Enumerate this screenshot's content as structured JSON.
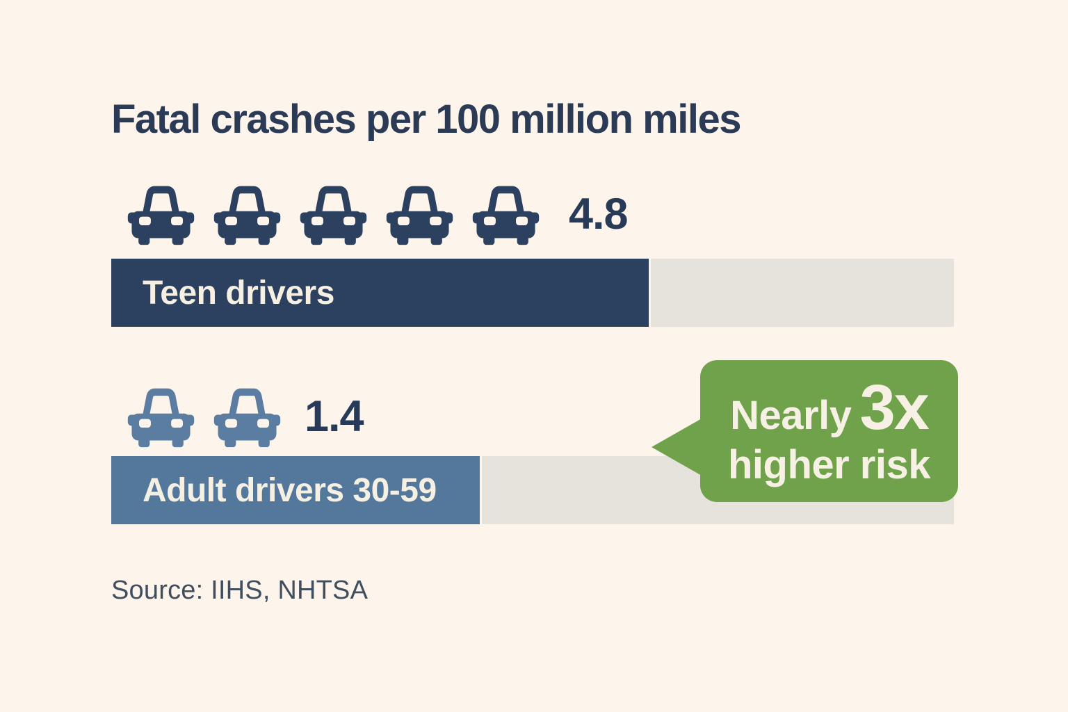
{
  "background": "#fdf4ec",
  "title": {
    "text": "Fatal crashes per 100 million miles",
    "color": "#2b3a55"
  },
  "chart_data": {
    "type": "bar",
    "orientation": "horizontal",
    "title": "Fatal crashes per 100 million miles",
    "categories": [
      "Teen drivers",
      "Adult drivers 30-59"
    ],
    "values": [
      4.8,
      1.4
    ],
    "value_labels": [
      "4.8",
      "1.4"
    ],
    "pictogram_car_counts": [
      5,
      2
    ],
    "bar_colors": [
      "#2c4060",
      "#54789c"
    ],
    "track_color": "#e6e3dc",
    "bar_fill_percents": [
      64,
      44
    ],
    "annotation": "Nearly 3x higher risk",
    "annotation_color": "#6fa24a",
    "source": "Source: IIHS, NHTSA",
    "legend": "none",
    "grid": false
  },
  "rows": [
    {
      "label": "Teen drivers",
      "value": "4.8",
      "car_count": 5,
      "icon_color": "#2c4060",
      "bar_color": "#2c4060",
      "bar_fill_percent": 64
    },
    {
      "label": "Adult drivers 30-59",
      "value": "1.4",
      "car_count": 2,
      "icon_color": "#5b7da2",
      "bar_color": "#54789c",
      "bar_fill_percent": 44
    }
  ],
  "callout": {
    "prefix": "Nearly",
    "multiplier": "3x",
    "line2": "higher risk",
    "bg_color": "#6fa24a",
    "text_color": "#f6f1e4"
  },
  "source": {
    "text": "Source: IIHS, NHTSA",
    "color": "#414e5e"
  }
}
